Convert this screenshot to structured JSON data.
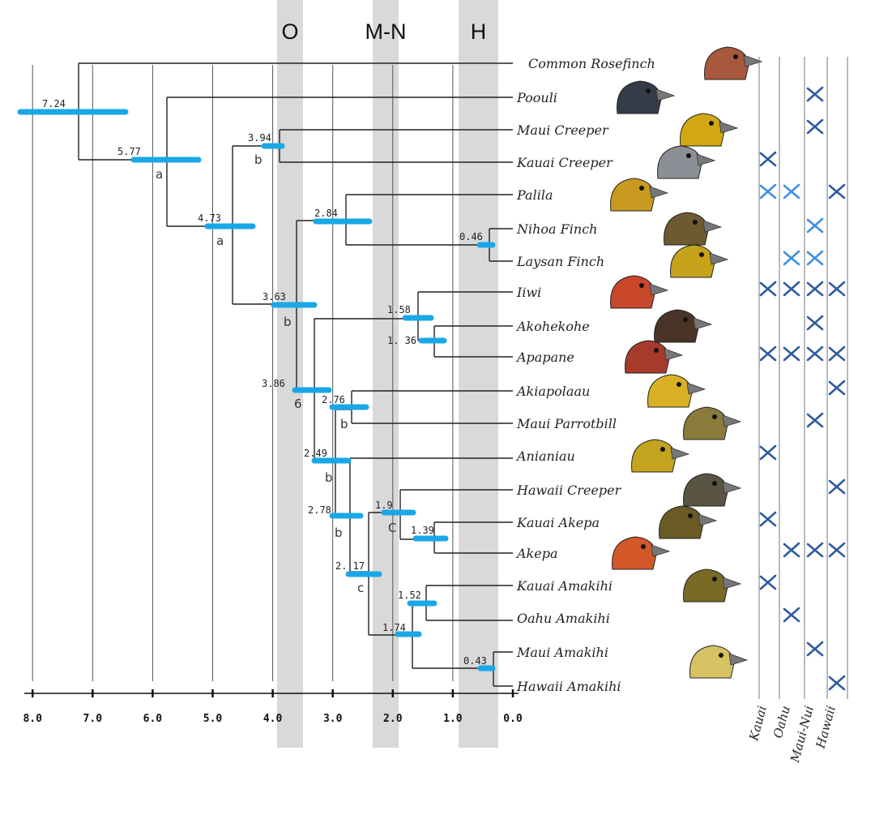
{
  "bands": [
    {
      "label": "O"
    },
    {
      "label": "M-N"
    },
    {
      "label": "H"
    }
  ],
  "axis": {
    "ticks": [
      "8.0",
      "7.0",
      "6.0",
      "5.0",
      "4.0",
      "3.0",
      "2.0",
      "1.0",
      "0.0"
    ]
  },
  "islands": [
    "Kauai",
    "Oahu",
    "Maui-Nui",
    "Hawaii"
  ],
  "colors": {
    "hpd_bar": "#1aa7e8",
    "mark_dark": "#2f5b9e",
    "mark_light": "#3f8fe0",
    "band": "#d9d9d9"
  },
  "species": [
    {
      "name": "Common Rosefinch",
      "icon": "rosefinch-head-icon",
      "color": "#a8583c",
      "marks": []
    },
    {
      "name": "Poouli",
      "icon": "poouli-head-icon",
      "color": "#353c48",
      "marks": [
        [
          "Maui-Nui",
          "dark"
        ]
      ]
    },
    {
      "name": "Maui Creeper",
      "icon": "maui-creeper-head-icon",
      "color": "#d2a814",
      "marks": [
        [
          "Maui-Nui",
          "dark"
        ]
      ]
    },
    {
      "name": "Kauai Creeper",
      "icon": "kauai-creeper-head-icon",
      "color": "#8c9096",
      "marks": [
        [
          "Kauai",
          "dark"
        ]
      ]
    },
    {
      "name": "Palila",
      "icon": "palila-head-icon",
      "color": "#c89a20",
      "marks": [
        [
          "Kauai",
          "light"
        ],
        [
          "Oahu",
          "light"
        ],
        [
          "Hawaii",
          "dark"
        ]
      ]
    },
    {
      "name": "Nihoa Finch",
      "icon": "nihoa-finch-head-icon",
      "color": "#6e5a32",
      "marks": [
        [
          "Maui-Nui",
          "light"
        ]
      ]
    },
    {
      "name": "Laysan Finch",
      "icon": "laysan-finch-head-icon",
      "color": "#c6a21a",
      "marks": [
        [
          "Oahu",
          "light"
        ],
        [
          "Maui-Nui",
          "light"
        ]
      ]
    },
    {
      "name": "Iiwi",
      "icon": "iiwi-head-icon",
      "color": "#c8462a",
      "marks": [
        [
          "Kauai",
          "dark"
        ],
        [
          "Oahu",
          "dark"
        ],
        [
          "Maui-Nui",
          "dark"
        ],
        [
          "Hawaii",
          "dark"
        ]
      ]
    },
    {
      "name": "Akohekohe",
      "icon": "akohekohe-head-icon",
      "color": "#4a3428",
      "marks": [
        [
          "Maui-Nui",
          "dark"
        ]
      ]
    },
    {
      "name": "Apapane",
      "icon": "apapane-head-icon",
      "color": "#a83a2c",
      "marks": [
        [
          "Kauai",
          "dark"
        ],
        [
          "Oahu",
          "dark"
        ],
        [
          "Maui-Nui",
          "dark"
        ],
        [
          "Hawaii",
          "dark"
        ]
      ]
    },
    {
      "name": "Akiapolaau",
      "icon": "akiapolaau-head-icon",
      "color": "#d8b224",
      "marks": [
        [
          "Hawaii",
          "dark"
        ]
      ]
    },
    {
      "name": "Maui Parrotbill",
      "icon": "maui-parrotbill-head-icon",
      "color": "#8a7a3c",
      "marks": [
        [
          "Maui-Nui",
          "dark"
        ]
      ]
    },
    {
      "name": "Anianiau",
      "icon": "anianiau-head-icon",
      "color": "#c4a41e",
      "marks": [
        [
          "Kauai",
          "dark"
        ]
      ]
    },
    {
      "name": "Hawaii Creeper",
      "icon": "hawaii-creeper-head-icon",
      "color": "#5a5442",
      "marks": [
        [
          "Hawaii",
          "dark"
        ]
      ]
    },
    {
      "name": "Kauai Akepa",
      "icon": "kauai-akepa-head-icon",
      "color": "#6a5a24",
      "marks": [
        [
          "Kauai",
          "dark"
        ]
      ]
    },
    {
      "name": "Akepa",
      "icon": "akepa-head-icon",
      "color": "#d2582a",
      "marks": [
        [
          "Oahu",
          "dark"
        ],
        [
          "Maui-Nui",
          "dark"
        ],
        [
          "Hawaii",
          "dark"
        ]
      ]
    },
    {
      "name": "Kauai Amakihi",
      "icon": "kauai-amakihi-head-icon",
      "color": "#7a6a28",
      "marks": [
        [
          "Kauai",
          "dark"
        ]
      ]
    },
    {
      "name": "Oahu Amakihi",
      "icon": "",
      "color": "",
      "marks": [
        [
          "Oahu",
          "dark"
        ]
      ]
    },
    {
      "name": "Maui Amakihi",
      "icon": "maui-amakihi-head-icon",
      "color": "#d6c262",
      "marks": [
        [
          "Maui-Nui",
          "dark"
        ]
      ]
    },
    {
      "name": "Hawaii Amakihi",
      "icon": "",
      "color": "",
      "marks": [
        [
          "Hawaii",
          "dark"
        ]
      ]
    }
  ],
  "nodes": [
    {
      "age": "7.24",
      "letter": ""
    },
    {
      "age": "5.77",
      "letter": "a"
    },
    {
      "age": "4.73",
      "letter": "a"
    },
    {
      "age": "3.94",
      "letter": "b"
    },
    {
      "age": "3.63",
      "letter": "b"
    },
    {
      "age": "2.84",
      "letter": ""
    },
    {
      "age": "0.46",
      "letter": ""
    },
    {
      "age": "1.58",
      "letter": ""
    },
    {
      "age": "1. 36",
      "letter": ""
    },
    {
      "age": "3.86",
      "letter": "6"
    },
    {
      "age": "2.76",
      "letter": "b"
    },
    {
      "age": "2.49",
      "letter": "b"
    },
    {
      "age": "2.78",
      "letter": "b"
    },
    {
      "age": "1.9",
      "letter": "C"
    },
    {
      "age": "1.39",
      "letter": ""
    },
    {
      "age": "2. 17",
      "letter": "c"
    },
    {
      "age": "1.52",
      "letter": ""
    },
    {
      "age": "1.74",
      "letter": ""
    },
    {
      "age": "0.43",
      "letter": ""
    }
  ]
}
